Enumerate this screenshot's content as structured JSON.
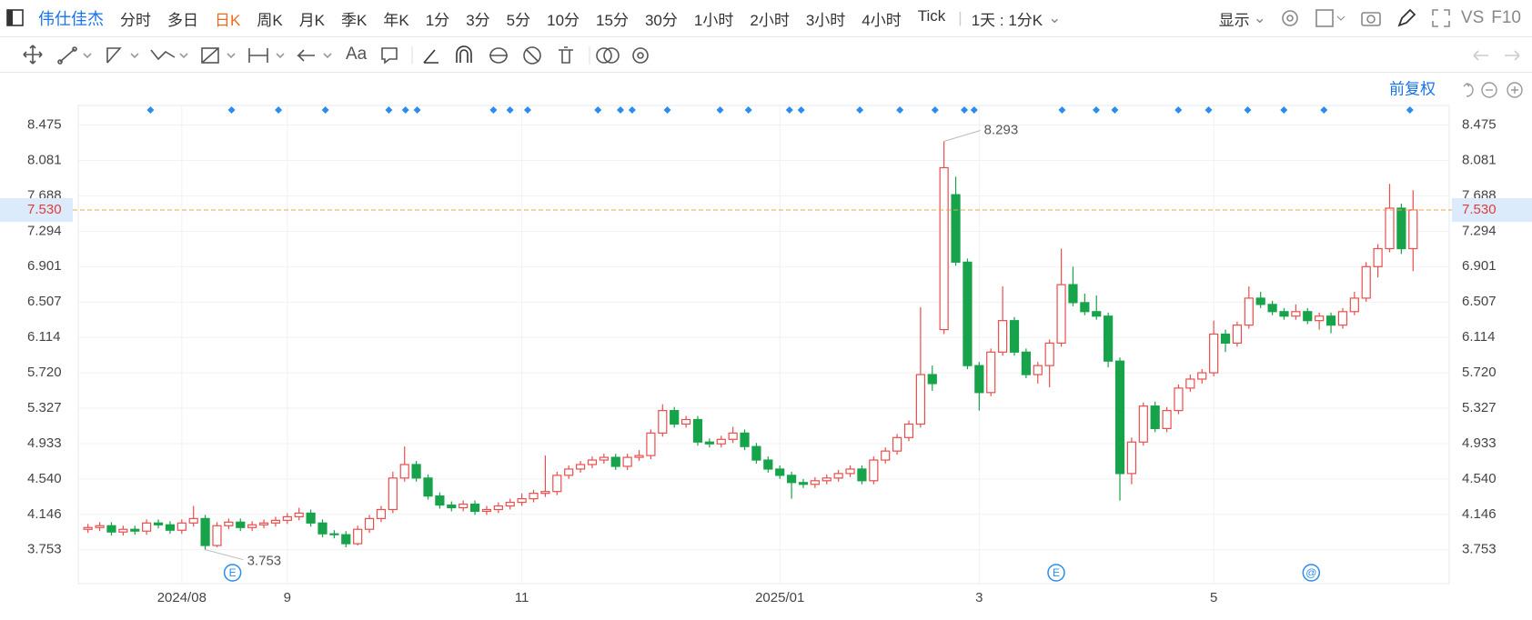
{
  "toolbar": {
    "stock": "伟仕佳杰",
    "periods": [
      "分时",
      "多日",
      "日K",
      "周K",
      "月K",
      "季K",
      "年K",
      "1分",
      "3分",
      "5分",
      "10分",
      "15分",
      "30分",
      "1小时",
      "2小时",
      "3小时",
      "4小时",
      "Tick"
    ],
    "active": "日K",
    "range": "1天 : 1分K",
    "display": "显示",
    "vs": "VS",
    "f10": "F10",
    "text_tool": "Aa"
  },
  "chart_data": {
    "type": "candlestick",
    "adjust": "前复权",
    "up_color": "#eb4d4d",
    "down_color": "#17a34a",
    "ylim": [
      3.376,
      8.692
    ],
    "yticks": [
      3.753,
      4.146,
      {
        "value": 4.54,
        "label": "4.540"
      },
      4.933,
      5.327,
      {
        "value": 5.72,
        "label": "5.720"
      },
      6.114,
      6.507,
      6.901,
      7.294,
      7.688,
      8.081,
      8.475
    ],
    "last_price": {
      "value": 7.53,
      "label": "7.530"
    },
    "max_label": "8.293",
    "min_label": "3.753",
    "events": [
      "E",
      "E",
      "@"
    ],
    "categories": [
      null,
      null,
      null,
      null,
      null,
      null,
      null,
      null,
      "2024/08",
      null,
      null,
      null,
      null,
      null,
      null,
      null,
      null,
      "9",
      null,
      null,
      null,
      null,
      null,
      null,
      null,
      null,
      null,
      null,
      null,
      null,
      null,
      null,
      null,
      null,
      null,
      null,
      null,
      "11",
      null,
      null,
      null,
      null,
      null,
      null,
      null,
      null,
      null,
      null,
      null,
      null,
      null,
      null,
      null,
      null,
      null,
      null,
      null,
      null,
      null,
      "2025/01",
      null,
      null,
      null,
      null,
      null,
      null,
      null,
      null,
      null,
      null,
      null,
      null,
      null,
      null,
      null,
      null,
      "3",
      null,
      null,
      null,
      null,
      null,
      null,
      null,
      null,
      null,
      null,
      null,
      null,
      null,
      null,
      null,
      null,
      null,
      null,
      null,
      "5",
      null,
      null,
      null,
      null,
      null,
      null,
      null,
      null,
      null,
      null,
      null,
      null,
      null,
      null,
      null,
      null,
      null
    ],
    "candles": [
      [
        3.98,
        4.04,
        3.94,
        4.0
      ],
      [
        4.0,
        4.06,
        3.96,
        4.02
      ],
      [
        4.02,
        4.06,
        3.91,
        3.95
      ],
      [
        3.95,
        4.02,
        3.91,
        3.98
      ],
      [
        3.98,
        4.02,
        3.92,
        3.96
      ],
      [
        3.96,
        4.09,
        3.92,
        4.05
      ],
      [
        4.05,
        4.09,
        3.99,
        4.03
      ],
      [
        4.03,
        4.07,
        3.93,
        3.97
      ],
      [
        3.97,
        4.09,
        3.93,
        4.05
      ],
      [
        4.05,
        4.24,
        4.01,
        4.1
      ],
      [
        4.1,
        4.14,
        3.753,
        3.8
      ],
      [
        3.8,
        4.06,
        3.78,
        4.02
      ],
      [
        4.02,
        4.1,
        3.98,
        4.06
      ],
      [
        4.06,
        4.1,
        3.96,
        4.0
      ],
      [
        4.0,
        4.07,
        3.96,
        4.03
      ],
      [
        4.03,
        4.09,
        3.99,
        4.05
      ],
      [
        4.05,
        4.12,
        4.01,
        4.08
      ],
      [
        4.08,
        4.16,
        4.04,
        4.12
      ],
      [
        4.12,
        4.22,
        4.08,
        4.16
      ],
      [
        4.16,
        4.2,
        4.01,
        4.05
      ],
      [
        4.05,
        4.09,
        3.89,
        3.93
      ],
      [
        3.93,
        3.97,
        3.88,
        3.92
      ],
      [
        3.92,
        3.96,
        3.78,
        3.82
      ],
      [
        3.82,
        4.02,
        3.8,
        3.98
      ],
      [
        3.98,
        4.14,
        3.94,
        4.1
      ],
      [
        4.1,
        4.24,
        4.06,
        4.2
      ],
      [
        4.2,
        4.62,
        4.16,
        4.55
      ],
      [
        4.55,
        4.9,
        4.51,
        4.7
      ],
      [
        4.7,
        4.74,
        4.51,
        4.55
      ],
      [
        4.55,
        4.59,
        4.31,
        4.35
      ],
      [
        4.35,
        4.39,
        4.21,
        4.25
      ],
      [
        4.25,
        4.29,
        4.18,
        4.22
      ],
      [
        4.22,
        4.3,
        4.18,
        4.26
      ],
      [
        4.26,
        4.3,
        4.14,
        4.18
      ],
      [
        4.18,
        4.24,
        4.14,
        4.2
      ],
      [
        4.2,
        4.28,
        4.16,
        4.24
      ],
      [
        4.24,
        4.32,
        4.2,
        4.28
      ],
      [
        4.28,
        4.38,
        4.24,
        4.32
      ],
      [
        4.32,
        4.42,
        4.28,
        4.38
      ],
      [
        4.38,
        4.8,
        4.34,
        4.4
      ],
      [
        4.4,
        4.62,
        4.36,
        4.58
      ],
      [
        4.58,
        4.69,
        4.54,
        4.65
      ],
      [
        4.65,
        4.74,
        4.61,
        4.7
      ],
      [
        4.7,
        4.79,
        4.66,
        4.75
      ],
      [
        4.75,
        4.82,
        4.71,
        4.78
      ],
      [
        4.78,
        4.82,
        4.64,
        4.68
      ],
      [
        4.68,
        4.82,
        4.64,
        4.78
      ],
      [
        4.78,
        4.86,
        4.74,
        4.8
      ],
      [
        4.8,
        5.09,
        4.76,
        5.05
      ],
      [
        5.05,
        5.37,
        5.01,
        5.3
      ],
      [
        5.3,
        5.34,
        5.11,
        5.15
      ],
      [
        5.15,
        5.24,
        5.11,
        5.2
      ],
      [
        5.2,
        5.24,
        4.91,
        4.95
      ],
      [
        4.95,
        4.99,
        4.89,
        4.93
      ],
      [
        4.93,
        5.02,
        4.89,
        4.98
      ],
      [
        4.98,
        5.12,
        4.94,
        5.05
      ],
      [
        5.05,
        5.09,
        4.86,
        4.9
      ],
      [
        4.9,
        4.94,
        4.71,
        4.75
      ],
      [
        4.75,
        4.79,
        4.61,
        4.65
      ],
      [
        4.65,
        4.69,
        4.54,
        4.58
      ],
      [
        4.58,
        4.62,
        4.32,
        4.5
      ],
      [
        4.5,
        4.54,
        4.44,
        4.48
      ],
      [
        4.48,
        4.56,
        4.44,
        4.52
      ],
      [
        4.52,
        4.59,
        4.48,
        4.55
      ],
      [
        4.55,
        4.64,
        4.51,
        4.6
      ],
      [
        4.6,
        4.69,
        4.56,
        4.65
      ],
      [
        4.65,
        4.69,
        4.48,
        4.52
      ],
      [
        4.52,
        4.79,
        4.48,
        4.75
      ],
      [
        4.75,
        4.89,
        4.71,
        4.85
      ],
      [
        4.85,
        5.04,
        4.81,
        5.0
      ],
      [
        5.0,
        5.19,
        4.96,
        5.15
      ],
      [
        5.15,
        6.45,
        5.11,
        5.7
      ],
      [
        5.7,
        5.8,
        5.52,
        5.6
      ],
      [
        6.2,
        8.293,
        6.15,
        8.0
      ],
      [
        7.7,
        7.9,
        6.91,
        6.95
      ],
      [
        6.95,
        6.99,
        5.76,
        5.8
      ],
      [
        5.8,
        5.84,
        5.3,
        5.5
      ],
      [
        5.5,
        5.99,
        5.46,
        5.95
      ],
      [
        5.95,
        6.68,
        5.91,
        6.3
      ],
      [
        6.3,
        6.34,
        5.91,
        5.95
      ],
      [
        5.95,
        5.99,
        5.66,
        5.7
      ],
      [
        5.7,
        5.84,
        5.6,
        5.8
      ],
      [
        5.8,
        6.09,
        5.56,
        6.05
      ],
      [
        6.05,
        7.1,
        6.01,
        6.7
      ],
      [
        6.7,
        6.9,
        6.46,
        6.5
      ],
      [
        6.5,
        6.6,
        6.36,
        6.4
      ],
      [
        6.4,
        6.58,
        6.31,
        6.35
      ],
      [
        6.35,
        6.39,
        5.78,
        5.85
      ],
      [
        5.85,
        5.89,
        4.3,
        4.6
      ],
      [
        4.6,
        5.0,
        4.48,
        4.95
      ],
      [
        4.95,
        5.39,
        4.91,
        5.35
      ],
      [
        5.35,
        5.4,
        5.06,
        5.1
      ],
      [
        5.1,
        5.34,
        5.06,
        5.3
      ],
      [
        5.3,
        5.59,
        5.26,
        5.55
      ],
      [
        5.55,
        5.7,
        5.51,
        5.65
      ],
      [
        5.65,
        5.76,
        5.6,
        5.72
      ],
      [
        5.72,
        6.3,
        5.68,
        6.15
      ],
      [
        6.15,
        6.2,
        5.95,
        6.05
      ],
      [
        6.05,
        6.29,
        6.01,
        6.25
      ],
      [
        6.25,
        6.68,
        6.21,
        6.55
      ],
      [
        6.55,
        6.62,
        6.44,
        6.48
      ],
      [
        6.48,
        6.52,
        6.36,
        6.4
      ],
      [
        6.4,
        6.44,
        6.31,
        6.35
      ],
      [
        6.35,
        6.48,
        6.31,
        6.4
      ],
      [
        6.4,
        6.44,
        6.26,
        6.3
      ],
      [
        6.3,
        6.39,
        6.2,
        6.35
      ],
      [
        6.35,
        6.39,
        6.16,
        6.25
      ],
      [
        6.25,
        6.44,
        6.21,
        6.4
      ],
      [
        6.4,
        6.62,
        6.36,
        6.55
      ],
      [
        6.55,
        6.95,
        6.51,
        6.9
      ],
      [
        6.9,
        7.15,
        6.78,
        7.1
      ],
      [
        7.1,
        7.82,
        7.06,
        7.55
      ],
      [
        7.55,
        7.6,
        7.04,
        7.1
      ],
      [
        7.1,
        7.75,
        6.85,
        7.53
      ]
    ]
  }
}
